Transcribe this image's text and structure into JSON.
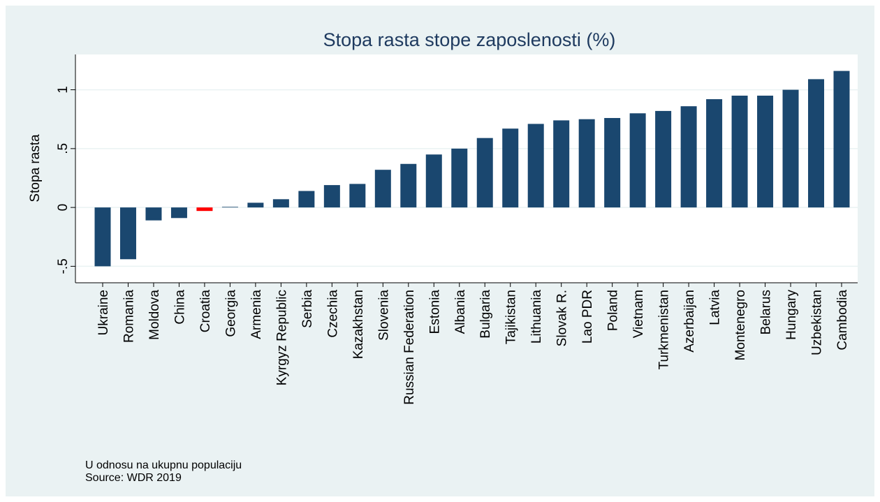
{
  "chart_data": {
    "type": "bar",
    "title": "Stopa rasta stope zaposlenosti (%)",
    "y_label": "Stopa rasta",
    "notes": [
      "U odnosu na ukupnu populaciju",
      "Source: WDR 2019"
    ],
    "categories": [
      "Ukraine",
      "Romania",
      "Moldova",
      "China",
      "Croatia",
      "Georgia",
      "Armenia",
      "Kyrgyz Republic",
      "Serbia",
      "Czechia",
      "Kazakhstan",
      "Slovenia",
      "Russian Federation",
      "Estonia",
      "Albania",
      "Bulgaria",
      "Tajikistan",
      "Lithuania",
      "Slovak R.",
      "Lao PDR",
      "Poland",
      "Vietnam",
      "Turkmenistan",
      "Azerbaijan",
      "Latvia",
      "Montenegro",
      "Belarus",
      "Hungary",
      "Uzbekistan",
      "Cambodia"
    ],
    "values": [
      -0.5,
      -0.44,
      -0.11,
      -0.09,
      -0.03,
      0.005,
      0.04,
      0.07,
      0.14,
      0.19,
      0.2,
      0.32,
      0.37,
      0.45,
      0.5,
      0.59,
      0.67,
      0.71,
      0.74,
      0.75,
      0.76,
      0.8,
      0.82,
      0.86,
      0.92,
      0.95,
      0.95,
      1.0,
      1.09,
      1.16
    ],
    "colors": [
      "#1a476f",
      "#1a476f",
      "#1a476f",
      "#1a476f",
      "#ff0000",
      "#1a476f",
      "#1a476f",
      "#1a476f",
      "#1a476f",
      "#1a476f",
      "#1a476f",
      "#1a476f",
      "#1a476f",
      "#1a476f",
      "#1a476f",
      "#1a476f",
      "#1a476f",
      "#1a476f",
      "#1a476f",
      "#1a476f",
      "#1a476f",
      "#1a476f",
      "#1a476f",
      "#1a476f",
      "#1a476f",
      "#1a476f",
      "#1a476f",
      "#1a476f",
      "#1a476f",
      "#1a476f"
    ],
    "ylim": [
      -0.64,
      1.3
    ],
    "yticks": [
      {
        "value": -0.5,
        "label": "-.5"
      },
      0,
      {
        "value": 0.5,
        "label": ".5"
      },
      1
    ],
    "grid": true
  }
}
